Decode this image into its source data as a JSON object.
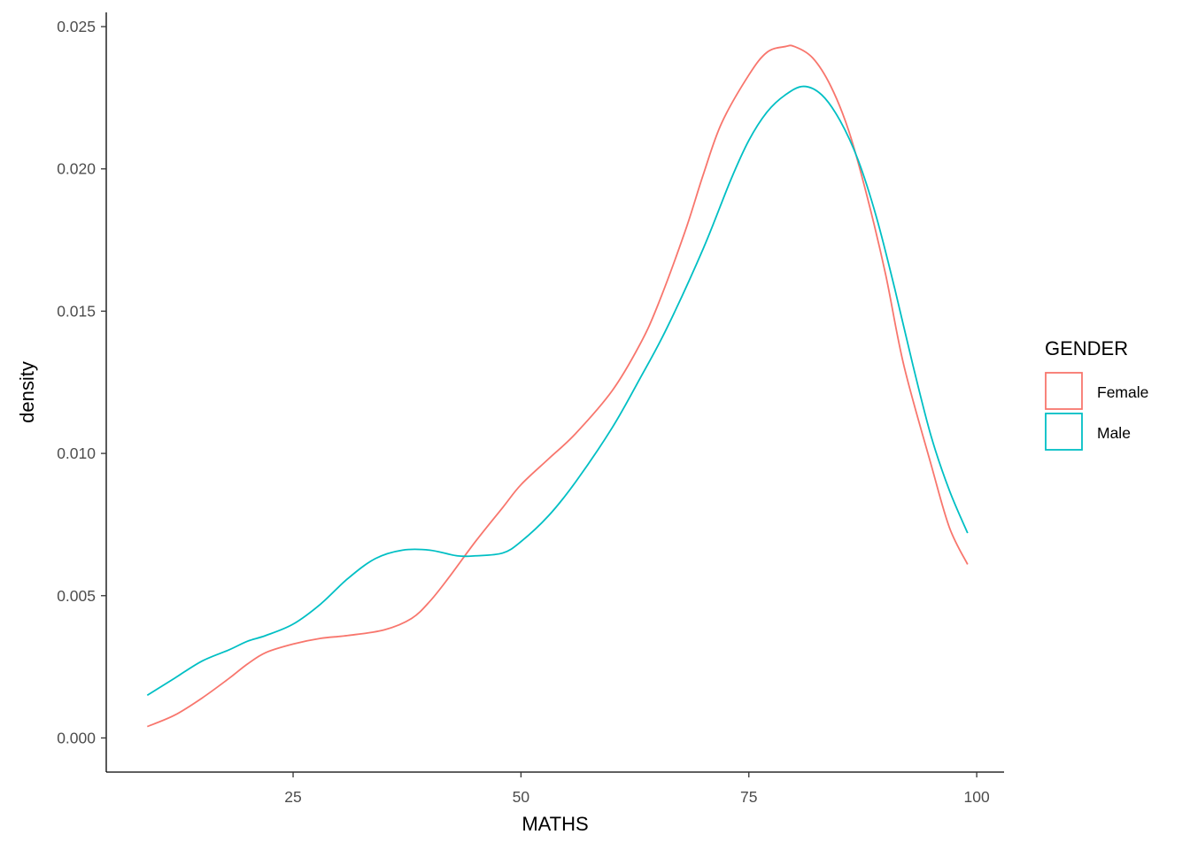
{
  "chart_data": {
    "type": "line",
    "title": "",
    "xlabel": "MATHS",
    "ylabel": "density",
    "xlim": [
      4.5,
      103
    ],
    "ylim": [
      -0.0012,
      0.0255
    ],
    "xticks": [
      25,
      50,
      75,
      100
    ],
    "xtick_labels": [
      "25",
      "50",
      "75",
      "100"
    ],
    "yticks": [
      0.0,
      0.005,
      0.01,
      0.015,
      0.02,
      0.025
    ],
    "ytick_labels": [
      "0.000",
      "0.005",
      "0.010",
      "0.015",
      "0.020",
      "0.025"
    ],
    "grid": false,
    "legend": {
      "title": "GENDER",
      "position": "right"
    },
    "series": [
      {
        "name": "Female",
        "color": "#F8766D",
        "x": [
          9,
          12,
          15,
          18,
          20,
          22,
          25,
          28,
          31,
          35,
          38,
          40,
          42,
          45,
          48,
          50,
          53,
          56,
          60,
          63,
          65,
          68,
          70,
          72,
          75,
          77,
          79,
          80,
          82,
          84,
          86,
          88,
          90,
          92,
          95,
          97,
          99
        ],
        "y": [
          0.0004,
          0.0008,
          0.0014,
          0.0021,
          0.0026,
          0.003,
          0.0033,
          0.0035,
          0.0036,
          0.0038,
          0.0042,
          0.0048,
          0.0056,
          0.0069,
          0.0081,
          0.0089,
          0.0098,
          0.0107,
          0.0122,
          0.0138,
          0.0152,
          0.0178,
          0.0198,
          0.0216,
          0.0233,
          0.0241,
          0.0243,
          0.0243,
          0.0239,
          0.0229,
          0.0213,
          0.019,
          0.0163,
          0.0131,
          0.0096,
          0.0074,
          0.0061
        ]
      },
      {
        "name": "Male",
        "color": "#00BFC4",
        "x": [
          9,
          12,
          15,
          18,
          20,
          22,
          25,
          28,
          31,
          34,
          37,
          40,
          43,
          45,
          48,
          50,
          53,
          56,
          60,
          63,
          66,
          70,
          73,
          75,
          77,
          79,
          81,
          83,
          85,
          87,
          89,
          91,
          93,
          95,
          97,
          99
        ],
        "y": [
          0.0015,
          0.0021,
          0.0027,
          0.0031,
          0.0034,
          0.0036,
          0.004,
          0.0047,
          0.0056,
          0.0063,
          0.0066,
          0.0066,
          0.0064,
          0.0064,
          0.0065,
          0.0069,
          0.0078,
          0.009,
          0.0109,
          0.0126,
          0.0144,
          0.0172,
          0.0196,
          0.021,
          0.022,
          0.0226,
          0.0229,
          0.0226,
          0.0217,
          0.0203,
          0.0183,
          0.0158,
          0.0131,
          0.0106,
          0.0087,
          0.0072
        ]
      }
    ]
  }
}
